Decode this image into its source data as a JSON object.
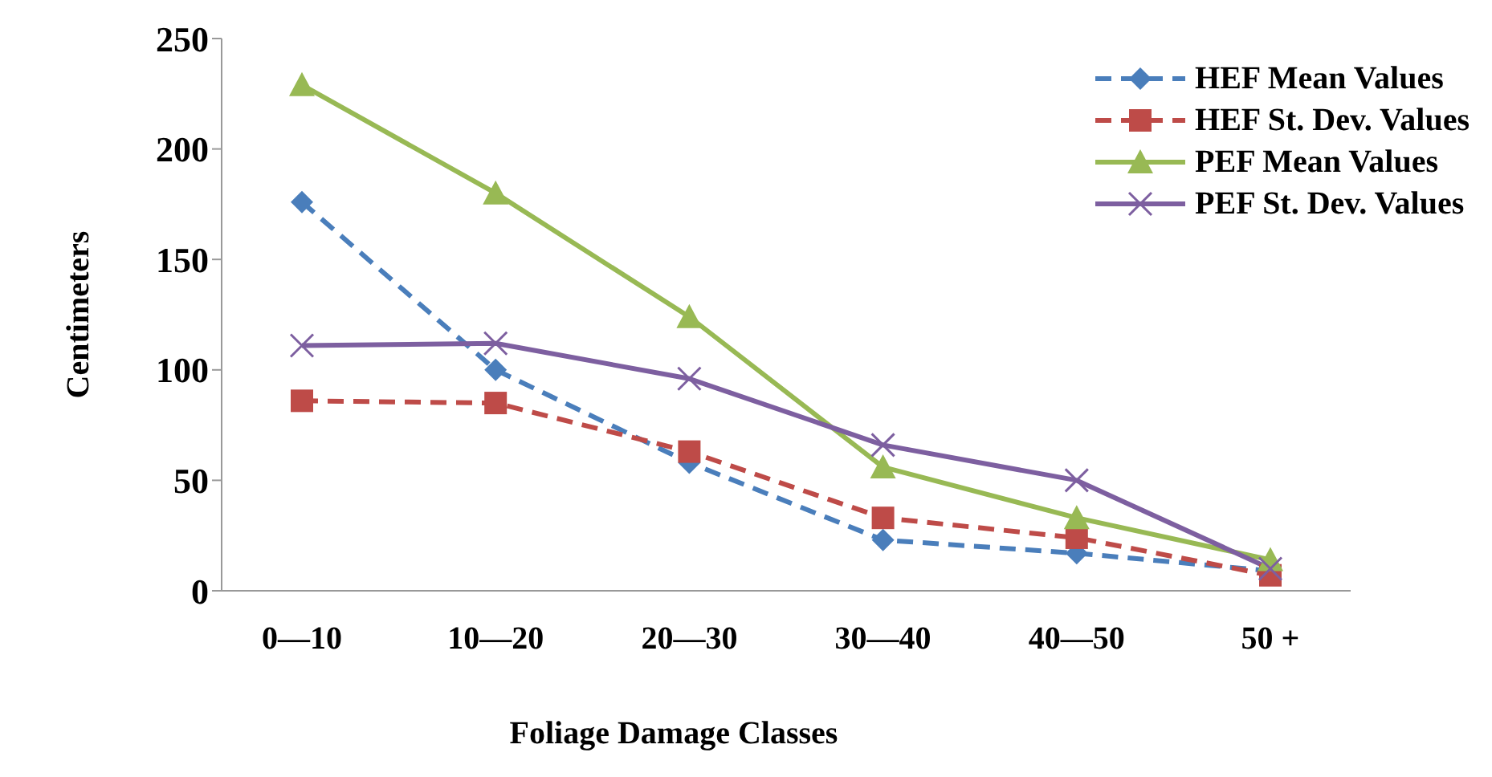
{
  "chart_data": {
    "type": "line",
    "xlabel": "Foliage Damage Classes",
    "ylabel": "Centimeters",
    "categories": [
      "0—10",
      "10—20",
      "20—30",
      "30—40",
      "40—50",
      "50 +"
    ],
    "ylim": [
      0,
      250
    ],
    "yticks": [
      0,
      50,
      100,
      150,
      200,
      250
    ],
    "grid": false,
    "legend": "top right",
    "series": [
      {
        "name": "HEF Mean Values",
        "color": "#4a7ebb",
        "marker": "diamond",
        "line_style": "dashed",
        "values": [
          176,
          100,
          58,
          23,
          17,
          9
        ]
      },
      {
        "name": "HEF St. Dev. Values",
        "color": "#be4b48",
        "marker": "square",
        "line_style": "dashed",
        "values": [
          86,
          85,
          63,
          33,
          24,
          7
        ]
      },
      {
        "name": "PEF Mean Values",
        "color": "#98b954",
        "marker": "triangle",
        "line_style": "solid",
        "values": [
          229,
          180,
          124,
          56,
          33,
          14
        ]
      },
      {
        "name": "PEF St. Dev. Values",
        "color": "#7d5fa0",
        "marker": "cross",
        "line_style": "solid",
        "values": [
          111,
          112,
          96,
          66,
          50,
          10
        ]
      }
    ]
  }
}
